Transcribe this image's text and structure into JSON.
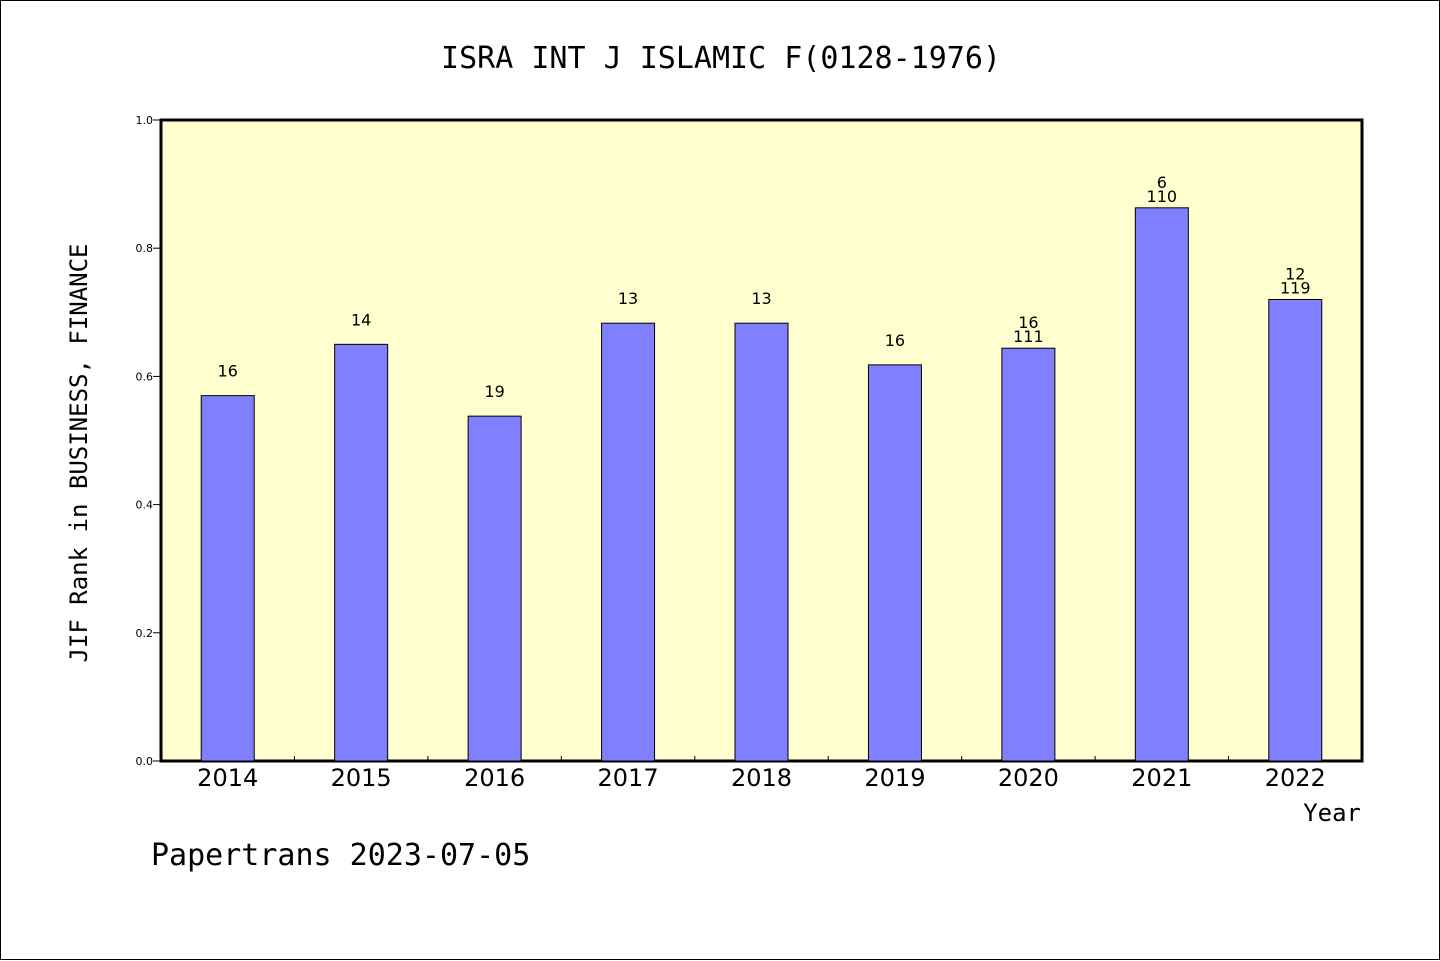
{
  "chart_data": {
    "type": "bar",
    "title": "ISRA INT J ISLAMIC F(0128-1976)",
    "xlabel": "Year",
    "ylabel": "JIF Rank in BUSINESS, FINANCE",
    "ylim": [
      0,
      1.0
    ],
    "yticks": [
      "0.0",
      "0.2",
      "0.4",
      "0.6",
      "0.8",
      "1.0"
    ],
    "categories": [
      "2014",
      "2015",
      "2016",
      "2017",
      "2018",
      "2019",
      "2020",
      "2021",
      "2022"
    ],
    "values": [
      0.57,
      0.65,
      0.538,
      0.683,
      0.683,
      0.618,
      0.644,
      0.863,
      0.72
    ],
    "bar_labels": [
      [
        "16"
      ],
      [
        "14"
      ],
      [
        "19"
      ],
      [
        "13"
      ],
      [
        "13"
      ],
      [
        "16"
      ],
      [
        "16",
        "111"
      ],
      [
        "6",
        "110"
      ],
      [
        "12",
        "119"
      ]
    ],
    "grid": false,
    "bar_color": "#8080ff",
    "plot_background": "#ffffd0"
  },
  "footer": "Papertrans 2023-07-05"
}
